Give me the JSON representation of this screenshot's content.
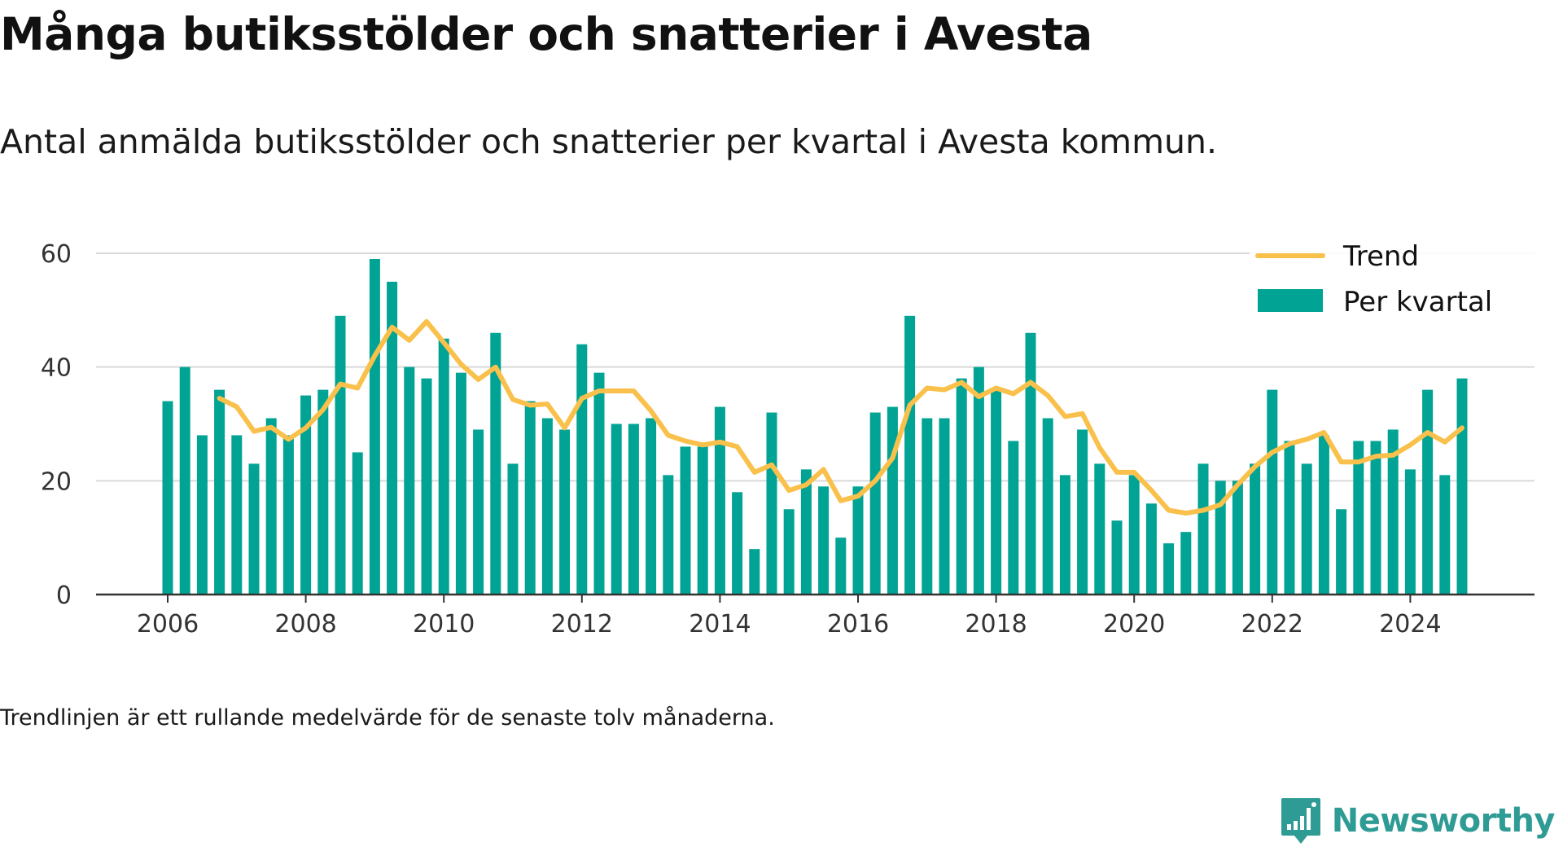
{
  "title": "Många butiksstölder och snatterier i Avesta",
  "subtitle": "Antal anmälda butiksstölder och snatterier per kvartal i Avesta kommun.",
  "note": "Trendlinjen är ett rullande medelvärde för de senaste tolv månaderna.",
  "brand": "Newsworthy",
  "colors": {
    "bar": "#00a394",
    "trend": "#f9c14b",
    "grid": "#d9d9d9",
    "axis": "#333333",
    "brand": "#2f9b95"
  },
  "chart_data": {
    "type": "bar",
    "title": "",
    "xlabel": "",
    "ylabel": "",
    "ylim": [
      0,
      60
    ],
    "yticks": [
      0,
      20,
      40,
      60
    ],
    "xticks": [
      2006,
      2008,
      2010,
      2012,
      2014,
      2016,
      2018,
      2020,
      2022,
      2024
    ],
    "grid": true,
    "legend_position": "top-right",
    "x_start_year": 2006,
    "series": [
      {
        "name": "Per kvartal",
        "type": "bar",
        "values": [
          34,
          40,
          28,
          36,
          28,
          23,
          31,
          28,
          35,
          36,
          49,
          25,
          59,
          55,
          40,
          38,
          45,
          39,
          29,
          46,
          23,
          34,
          31,
          29,
          44,
          39,
          30,
          30,
          31,
          21,
          26,
          26,
          33,
          18,
          8,
          32,
          15,
          22,
          19,
          10,
          19,
          32,
          33,
          49,
          31,
          31,
          38,
          40,
          36,
          27,
          46,
          31,
          21,
          29,
          23,
          13,
          21,
          16,
          9,
          11,
          23,
          20,
          20,
          23,
          36,
          27,
          23,
          28,
          15,
          27,
          27,
          29,
          22,
          36,
          21,
          38
        ]
      },
      {
        "name": "Trend",
        "type": "line",
        "values": [
          null,
          null,
          null,
          34.5,
          33,
          28.7,
          29.4,
          27.3,
          29.3,
          32.5,
          37,
          36.3,
          42,
          47,
          44.7,
          48,
          44.3,
          40.5,
          37.8,
          40,
          34.3,
          33.3,
          33.5,
          29.3,
          34.5,
          35.8,
          35.8,
          35.8,
          32.3,
          28,
          27,
          26.3,
          26.8,
          26,
          21.5,
          22.8,
          18.3,
          19.3,
          22,
          16.5,
          17.3,
          20,
          24,
          33.3,
          36.3,
          36,
          37.3,
          34.8,
          36.3,
          35.3,
          37.3,
          35,
          31.3,
          31.8,
          25.8,
          21.5,
          21.5,
          18.3,
          14.8,
          14.3,
          14.8,
          15.8,
          19.3,
          22.5,
          25,
          26.5,
          27.3,
          28.5,
          23.3,
          23.3,
          24.3,
          24.5,
          26.3,
          28.5,
          26.8,
          29.3
        ]
      }
    ]
  }
}
